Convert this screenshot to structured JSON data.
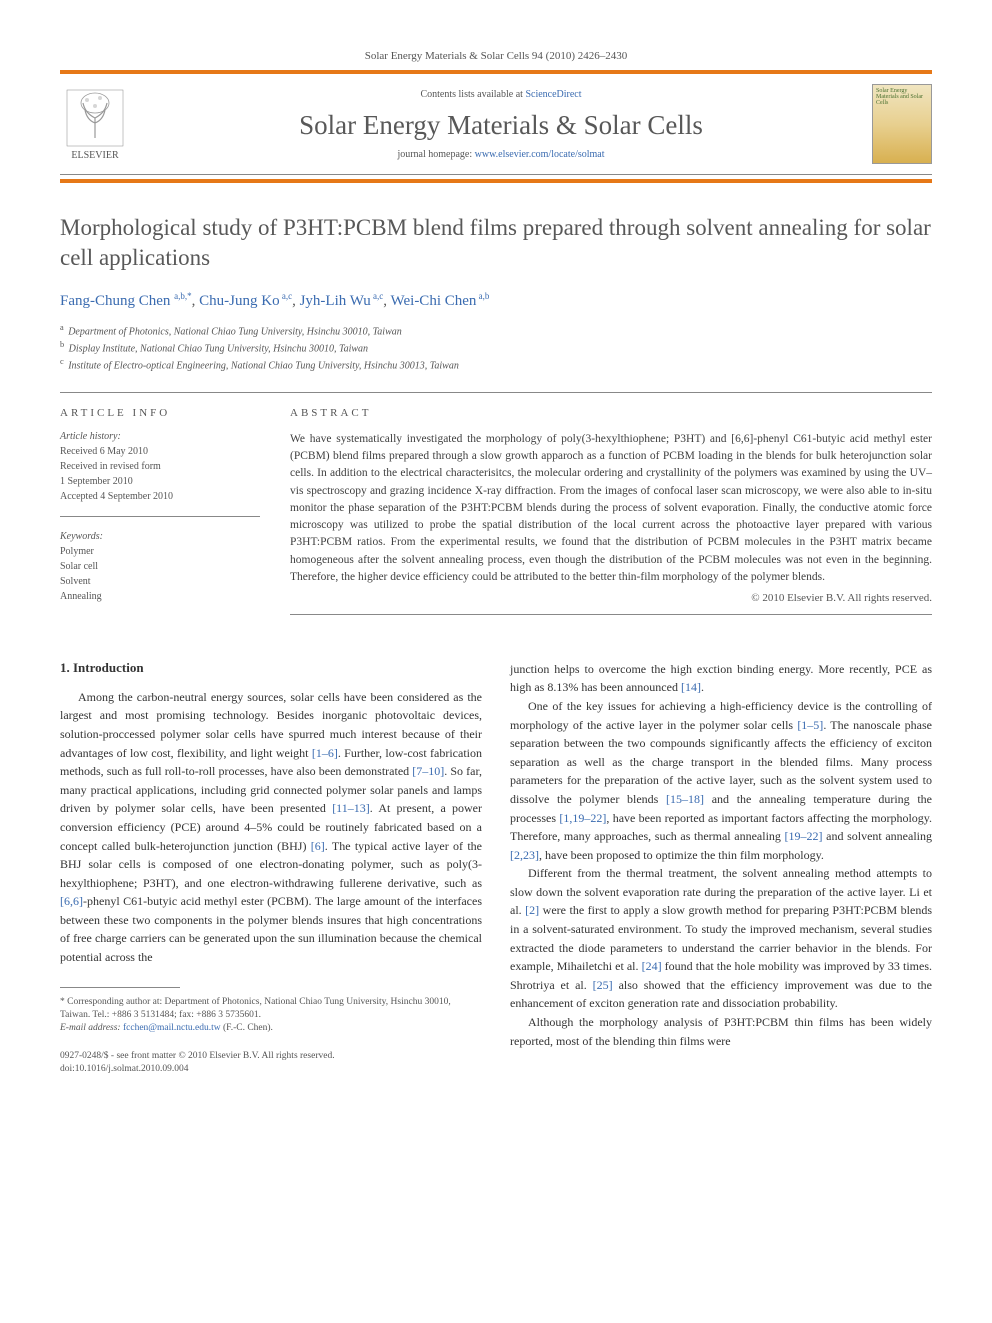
{
  "header": {
    "journal_ref": "Solar Energy Materials & Solar Cells 94 (2010) 2426–2430",
    "contents_prefix": "Contents lists available at ",
    "contents_link": "ScienceDirect",
    "journal_name": "Solar Energy Materials & Solar Cells",
    "homepage_prefix": "journal homepage: ",
    "homepage_url": "www.elsevier.com/locate/solmat",
    "publisher": "ELSEVIER",
    "cover_text": "Solar Energy Materials and Solar Cells"
  },
  "colors": {
    "accent": "#e67817",
    "link": "#3a6bb0",
    "heading_gray": "#585858",
    "body_text": "#333333",
    "muted": "#555555",
    "rule": "#888888",
    "background": "#ffffff"
  },
  "typography": {
    "title_fontsize": 23,
    "journal_name_fontsize": 27,
    "authors_fontsize": 15,
    "body_fontsize": 12,
    "abstract_fontsize": 11.5,
    "small_fontsize": 10,
    "font_family": "Georgia, Times New Roman, serif"
  },
  "article": {
    "title": "Morphological study of P3HT:PCBM blend films prepared through solvent annealing for solar cell applications",
    "authors_html": "Fang-Chung Chen <sup>a,b,*</sup>, Chu-Jung Ko<sup> a,c</sup>, Jyh-Lih Wu<sup> a,c</sup>, Wei-Chi Chen<sup> a,b</sup>",
    "affiliations": [
      "a Department of Photonics, National Chiao Tung University, Hsinchu 30010, Taiwan",
      "b Display Institute, National Chiao Tung University, Hsinchu 30010, Taiwan",
      "c Institute of Electro-optical Engineering, National Chiao Tung University, Hsinchu 30013, Taiwan"
    ]
  },
  "article_info": {
    "heading": "ARTICLE INFO",
    "history_label": "Article history:",
    "history": [
      "Received 6 May 2010",
      "Received in revised form",
      "1 September 2010",
      "Accepted 4 September 2010"
    ],
    "keywords_label": "Keywords:",
    "keywords": [
      "Polymer",
      "Solar cell",
      "Solvent",
      "Annealing"
    ]
  },
  "abstract": {
    "heading": "ABSTRACT",
    "text": "We have systematically investigated the morphology of poly(3-hexylthiophene; P3HT) and [6,6]-phenyl C61-butyic acid methyl ester (PCBM) blend films prepared through a slow growth apparoch as a function of PCBM loading in the blends for bulk heterojunction solar cells. In addition to the electrical characterisitcs, the molecular ordering and crystallinity of the polymers was examined by using the UV–vis spectroscopy and grazing incidence X-ray diffraction. From the images of confocal laser scan microscopy, we were also able to in-situ monitor the phase separation of the P3HT:PCBM blends during the process of solvent evaporation. Finally, the conductive atomic force microscopy was utilized to probe the spatial distribution of the local current across the photoactive layer prepared with various P3HT:PCBM ratios. From the experimental results, we found that the distribution of PCBM molecules in the P3HT matrix became homogeneous after the solvent annealing process, even though the distribution of the PCBM molecules was not even in the beginning. Therefore, the higher device efficiency could be attributed to the better thin-film morphology of the polymer blends.",
    "copyright": "© 2010 Elsevier B.V. All rights reserved."
  },
  "body": {
    "section_1_heading": "1. Introduction",
    "col1_p1": "Among the carbon-neutral energy sources, solar cells have been considered as the largest and most promising technology. Besides inorganic photovoltaic devices, solution-proccessed polymer solar cells have spurred much interest because of their advantages of low cost, flexibility, and light weight [1–6]. Further, low-cost fabrication methods, such as full roll-to-roll processes, have also been demonstrated [7–10]. So far, many practical applications, including grid connected polymer solar panels and lamps driven by polymer solar cells, have been presented [11–13]. At present, a power conversion efficiency (PCE) around 4–5% could be routinely fabricated based on a concept called bulk-heterojunction junction (BHJ) [6]. The typical active layer of the BHJ solar cells is composed of one electron-donating polymer, such as poly(3-hexylthiophene; P3HT), and one electron-withdrawing fullerene derivative, such as [6,6]-phenyl C61-butyic acid methyl ester (PCBM). The large amount of the interfaces between these two components in the polymer blends insures that high concentrations of free charge carriers can be generated upon the sun illumination because the chemical potential across the",
    "col2_p1": "junction helps to overcome the high exction binding energy. More recently, PCE as high as 8.13% has been announced [14].",
    "col2_p2": "One of the key issues for achieving a high-efficiency device is the controlling of morphology of the active layer in the polymer solar cells [1–5]. The nanoscale phase separation between the two compounds significantly affects the efficiency of exciton separation as well as the charge transport in the blended films. Many process parameters for the preparation of the active layer, such as the solvent system used to dissolve the polymer blends [15–18] and the annealing temperature during the processes [1,19–22], have been reported as important factors affecting the morphology. Therefore, many approaches, such as thermal annealing [19–22] and solvent annealing [2,23], have been proposed to optimize the thin film morphology.",
    "col2_p3": "Different from the thermal treatment, the solvent annealing method attempts to slow down the solvent evaporation rate during the preparation of the active layer. Li et al. [2] were the first to apply a slow growth method for preparing P3HT:PCBM blends in a solvent-saturated environment. To study the improved mechanism, several studies extracted the diode parameters to understand the carrier behavior in the blends. For example, Mihailetchi et al. [24] found that the hole mobility was improved by 33 times. Shrotriya et al. [25] also showed that the efficiency improvement was due to the enhancement of exciton generation rate and dissociation probability.",
    "col2_p4": "Although the morphology analysis of P3HT:PCBM thin films has been widely reported, most of the blending thin films were"
  },
  "footnote": {
    "corr": "* Corresponding author at: Department of Photonics, National Chiao Tung University, Hsinchu 30010, Taiwan. Tel.: +886 3 5131484; fax: +886 3 5735601.",
    "email_label": "E-mail address: ",
    "email": "fcchen@mail.nctu.edu.tw",
    "email_suffix": " (F.-C. Chen)."
  },
  "bottom": {
    "line1": "0927-0248/$ - see front matter © 2010 Elsevier B.V. All rights reserved.",
    "line2": "doi:10.1016/j.solmat.2010.09.004"
  }
}
